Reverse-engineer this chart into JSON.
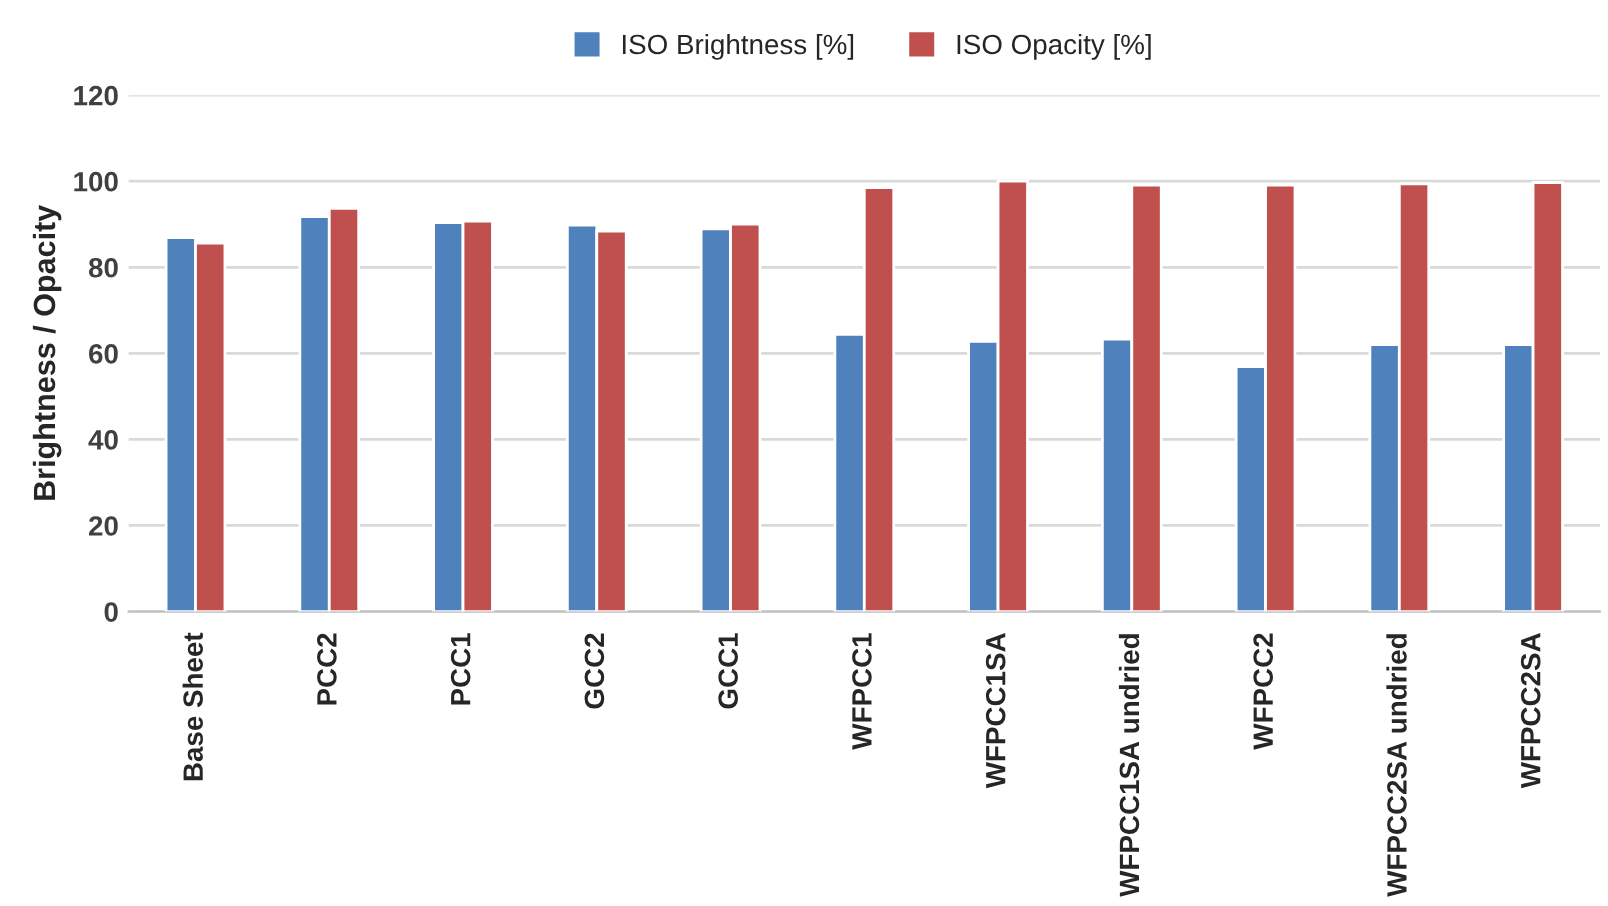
{
  "chart_data": {
    "type": "bar",
    "ylabel": "Brightness / Opacity",
    "categories": [
      "Base Sheet",
      "PCC2",
      "PCC1",
      "GCC2",
      "GCC1",
      "WFPCC1",
      "WFPCC1SA",
      "WFPCC1SA undried",
      "WFPCC2",
      "WFPCC2SA undried",
      "WFPCC2SA"
    ],
    "series": [
      {
        "name": "ISO Brightness [%]",
        "color": "#4f81bd",
        "values": [
          86.9,
          91.8,
          90.4,
          89.8,
          88.9,
          64.4,
          62.8,
          63.3,
          56.9,
          62.0,
          62.0
        ]
      },
      {
        "name": "ISO Opacity [%]",
        "color": "#c0504d",
        "values": [
          85.6,
          93.7,
          90.7,
          88.4,
          90.0,
          98.5,
          100.0,
          99.1,
          99.1,
          99.4,
          99.7
        ]
      }
    ],
    "ylim": [
      0,
      120
    ],
    "yticks": [
      0,
      20,
      40,
      60,
      80,
      100,
      120
    ],
    "grid": "y",
    "legend": "top"
  }
}
